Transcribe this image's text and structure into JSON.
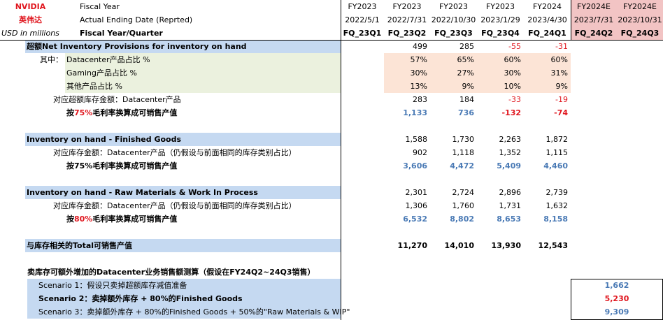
{
  "header": {
    "company_en": "NVIDIA",
    "company_cn": "英伟达",
    "units": "USD in millions",
    "label_fiscal_year": "Fiscal Year",
    "label_end_date": "Actual Ending Date (Reprted)",
    "label_fy_quarter": "Fiscal Year/Quarter",
    "fiscal_years": [
      "FY2023",
      "FY2023",
      "FY2023",
      "FY2023",
      "FY2024",
      "FY2024E",
      "FY2024E"
    ],
    "end_dates": [
      "2022/5/1",
      "2022/7/31",
      "2022/10/30",
      "2023/1/29",
      "2023/4/30",
      "2023/7/31",
      "2023/10/31"
    ],
    "quarters": [
      "FQ_23Q1",
      "FQ_23Q2",
      "FQ_23Q3",
      "FQ_23Q4",
      "FQ_24Q1",
      "FQ_24Q2",
      "FQ_24Q3"
    ]
  },
  "excess": {
    "title": "超额Net Inventory Provisions for inventory on hand",
    "values": [
      "",
      "499",
      "285",
      "-55",
      "-31",
      "",
      ""
    ],
    "prefix": "其中：",
    "dc_label": "Datacenter产品占比 %",
    "dc_values": [
      "",
      "57%",
      "65%",
      "60%",
      "60%",
      "",
      ""
    ],
    "gaming_label": "Gaming产品占比 %",
    "gaming_values": [
      "",
      "30%",
      "27%",
      "30%",
      "31%",
      "",
      ""
    ],
    "other_label": "其他产品占比 %",
    "other_values": [
      "",
      "13%",
      "9%",
      "10%",
      "9%",
      "",
      ""
    ],
    "dc_amount_label": "对应超额库存金额：Datacenter产品",
    "dc_amount_values": [
      "",
      "283",
      "184",
      "-33",
      "-19",
      "",
      ""
    ],
    "sale_label_pre": "按",
    "sale_label_pct": "75%",
    "sale_label_post": "毛利率换算成可销售产值",
    "sale_values": [
      "",
      "1,133",
      "736",
      "-132",
      "-74",
      "",
      ""
    ]
  },
  "finished": {
    "title": "Inventory on hand - Finished Goods",
    "values": [
      "",
      "1,588",
      "1,730",
      "2,263",
      "1,872",
      "",
      ""
    ],
    "dc_label": "对应库存金额：Datacenter产品（仍假设与前面相同的库存类别占比）",
    "dc_values": [
      "",
      "902",
      "1,118",
      "1,352",
      "1,115",
      "",
      ""
    ],
    "sale_label": "按75%毛利率换算成可销售产值",
    "sale_values": [
      "",
      "3,606",
      "4,472",
      "5,409",
      "4,460",
      "",
      ""
    ]
  },
  "raw": {
    "title": "Inventory on hand - Raw Materials & Work In Process",
    "values": [
      "",
      "2,301",
      "2,724",
      "2,896",
      "2,739",
      "",
      ""
    ],
    "dc_label": "对应库存金额：Datacenter产品（仍假设与前面相同的库存类别占比）",
    "dc_values": [
      "",
      "1,306",
      "1,760",
      "1,731",
      "1,632",
      "",
      ""
    ],
    "sale_label_pre": "按",
    "sale_label_pct": "80%",
    "sale_label_post": "毛利率换算成可销售产值",
    "sale_values": [
      "",
      "6,532",
      "8,802",
      "8,653",
      "8,158",
      "",
      ""
    ]
  },
  "total": {
    "label": "与库存相关的Total可销售产值",
    "values": [
      "",
      "11,270",
      "14,010",
      "13,930",
      "12,543",
      "",
      ""
    ]
  },
  "scenarios": {
    "title": "卖库存可额外增加的Datacenter业务销售额测算（假设在FY24Q2~24Q3销售）",
    "s1_label": "Scenario 1：假设只卖掉超额库存减值准备",
    "s1_value": "1,662",
    "s2_label": "Scenario 2：卖掉额外库存 + 80%的Finished Goods",
    "s2_value": "5,230",
    "s3_label": "Scenario 3：卖掉额外库存 + 80%的Finished Goods + 50%的\"Raw Materials & WIP\"",
    "s3_value": "9,309"
  }
}
